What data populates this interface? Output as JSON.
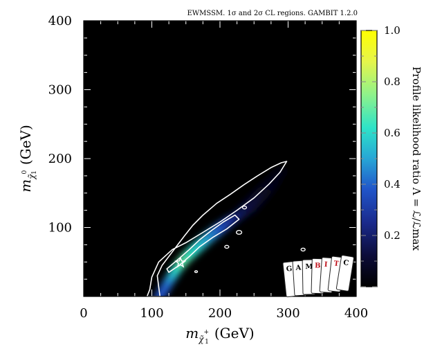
{
  "chart_data": {
    "type": "heatmap",
    "annotation": "EWMSSM. 1σ and 2σ CL regions. GAMBIT 1.2.0",
    "xlabel": "m",
    "xlabel_sub": "χ̃",
    "xlabel_sup": "+",
    "xlabel_index": "1",
    "xlabel_unit": "(GeV)",
    "ylabel": "m",
    "ylabel_sub": "χ̃",
    "ylabel_sup": "0",
    "ylabel_index": "1",
    "ylabel_unit": "(GeV)",
    "xlim": [
      0,
      400
    ],
    "ylim": [
      0,
      400
    ],
    "xticks": [
      "0",
      "100",
      "200",
      "300",
      "400"
    ],
    "yticks": [
      "100",
      "200",
      "300",
      "400"
    ],
    "colorbar_label": "Profile likelihood ratio Λ = ℒ/ℒmax",
    "colorbar_ticks": [
      "0.2",
      "0.4",
      "0.6",
      "0.8",
      "1.0"
    ],
    "colorbar_range": [
      0,
      1
    ],
    "background_color": "#000000",
    "colormap": [
      "#000000",
      "#0c0c38",
      "#1a2a8c",
      "#2155c9",
      "#27a6d6",
      "#2ee3c8",
      "#8ff28a",
      "#e6f54a",
      "#ffff00"
    ],
    "contour_color": "#ffffff",
    "best_fit_marker": {
      "shape": "star",
      "x": 142,
      "y": 49
    },
    "likelihood_ridge": [
      {
        "x": 112,
        "y": 0,
        "w": 10,
        "v": 0.35
      },
      {
        "x": 125,
        "y": 22,
        "w": 10,
        "v": 0.4
      },
      {
        "x": 138,
        "y": 42,
        "w": 10,
        "v": 0.6
      },
      {
        "x": 150,
        "y": 56,
        "w": 11,
        "v": 0.7
      },
      {
        "x": 165,
        "y": 70,
        "w": 12,
        "v": 0.62
      },
      {
        "x": 180,
        "y": 83,
        "w": 12,
        "v": 0.55
      },
      {
        "x": 195,
        "y": 95,
        "w": 12,
        "v": 0.45
      },
      {
        "x": 210,
        "y": 106,
        "w": 11,
        "v": 0.35
      },
      {
        "x": 225,
        "y": 116,
        "w": 9,
        "v": 0.25
      },
      {
        "x": 245,
        "y": 132,
        "w": 14,
        "v": 0.15
      },
      {
        "x": 270,
        "y": 158,
        "w": 14,
        "v": 0.08
      },
      {
        "x": 290,
        "y": 182,
        "w": 10,
        "v": 0.04
      }
    ],
    "contour_2sigma": [
      [
        93,
        0
      ],
      [
        97,
        10
      ],
      [
        100,
        28
      ],
      [
        110,
        50
      ],
      [
        130,
        68
      ],
      [
        150,
        78
      ],
      [
        175,
        93
      ],
      [
        200,
        108
      ],
      [
        225,
        125
      ],
      [
        250,
        143
      ],
      [
        272,
        163
      ],
      [
        288,
        180
      ],
      [
        298,
        196
      ],
      [
        290,
        194
      ],
      [
        275,
        187
      ],
      [
        255,
        175
      ],
      [
        235,
        162
      ],
      [
        215,
        148
      ],
      [
        195,
        135
      ],
      [
        175,
        118
      ],
      [
        160,
        103
      ],
      [
        148,
        88
      ],
      [
        138,
        75
      ],
      [
        128,
        62
      ],
      [
        115,
        45
      ],
      [
        108,
        30
      ],
      [
        110,
        14
      ],
      [
        112,
        0
      ]
    ],
    "contour_1sigma": [
      [
        125,
        35
      ],
      [
        140,
        45
      ],
      [
        155,
        58
      ],
      [
        170,
        72
      ],
      [
        190,
        86
      ],
      [
        210,
        98
      ],
      [
        228,
        112
      ],
      [
        222,
        118
      ],
      [
        205,
        108
      ],
      [
        188,
        96
      ],
      [
        170,
        82
      ],
      [
        155,
        68
      ],
      [
        140,
        55
      ],
      [
        128,
        45
      ],
      [
        122,
        40
      ]
    ],
    "contour_islands": [
      {
        "x": 228,
        "y": 93,
        "r": 4
      },
      {
        "x": 210,
        "y": 72,
        "r": 3
      },
      {
        "x": 322,
        "y": 68,
        "r": 3
      },
      {
        "x": 165,
        "y": 36,
        "r": 2
      },
      {
        "x": 236,
        "y": 129,
        "r": 3
      }
    ],
    "logo_cards": [
      "G",
      "A",
      "M",
      "B",
      "I",
      "T",
      "C"
    ],
    "logo_card_colors": [
      "#000000",
      "#000000",
      "#000000",
      "#c0141e",
      "#c0141e",
      "#c0141e",
      "#000000"
    ]
  }
}
